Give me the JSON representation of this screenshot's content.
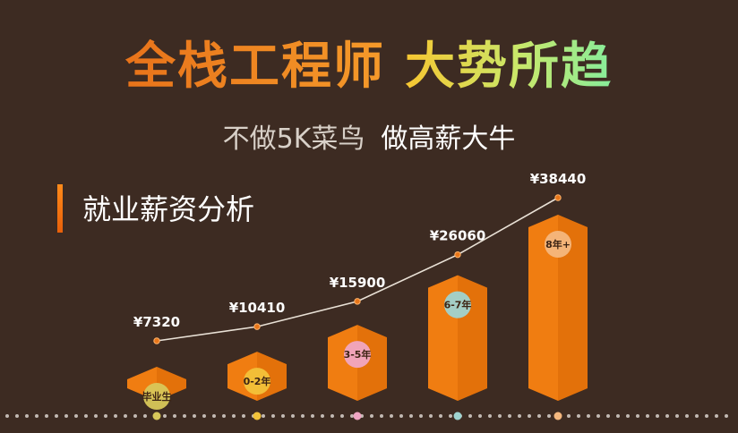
{
  "header": {
    "title_part1": "全栈工程师",
    "title_part2": "大势所趋",
    "subtitle_part1": "不做5K菜鸟",
    "subtitle_part2": "做高薪大牛"
  },
  "section": {
    "title": "就业薪资分析"
  },
  "colors": {
    "background": "#3d2b22",
    "bar": "#f07d11",
    "bar_shade": "#d96806",
    "line": "#e9e1d6",
    "point": "#e8761a"
  },
  "chart_data": {
    "type": "bar",
    "categories": [
      "毕业生",
      "0-2年",
      "3-5年",
      "6-7年",
      "8年+"
    ],
    "values": [
      7320,
      10410,
      15900,
      26060,
      38440
    ],
    "value_labels": [
      "¥7320",
      "¥10410",
      "¥15900",
      "¥26060",
      "¥38440"
    ],
    "badge_colors": [
      "#d8c75a",
      "#f2c23a",
      "#f0a6c3",
      "#9fd3d0",
      "#f4b77e"
    ],
    "overlay": "line",
    "grid": false,
    "legend": "none"
  }
}
